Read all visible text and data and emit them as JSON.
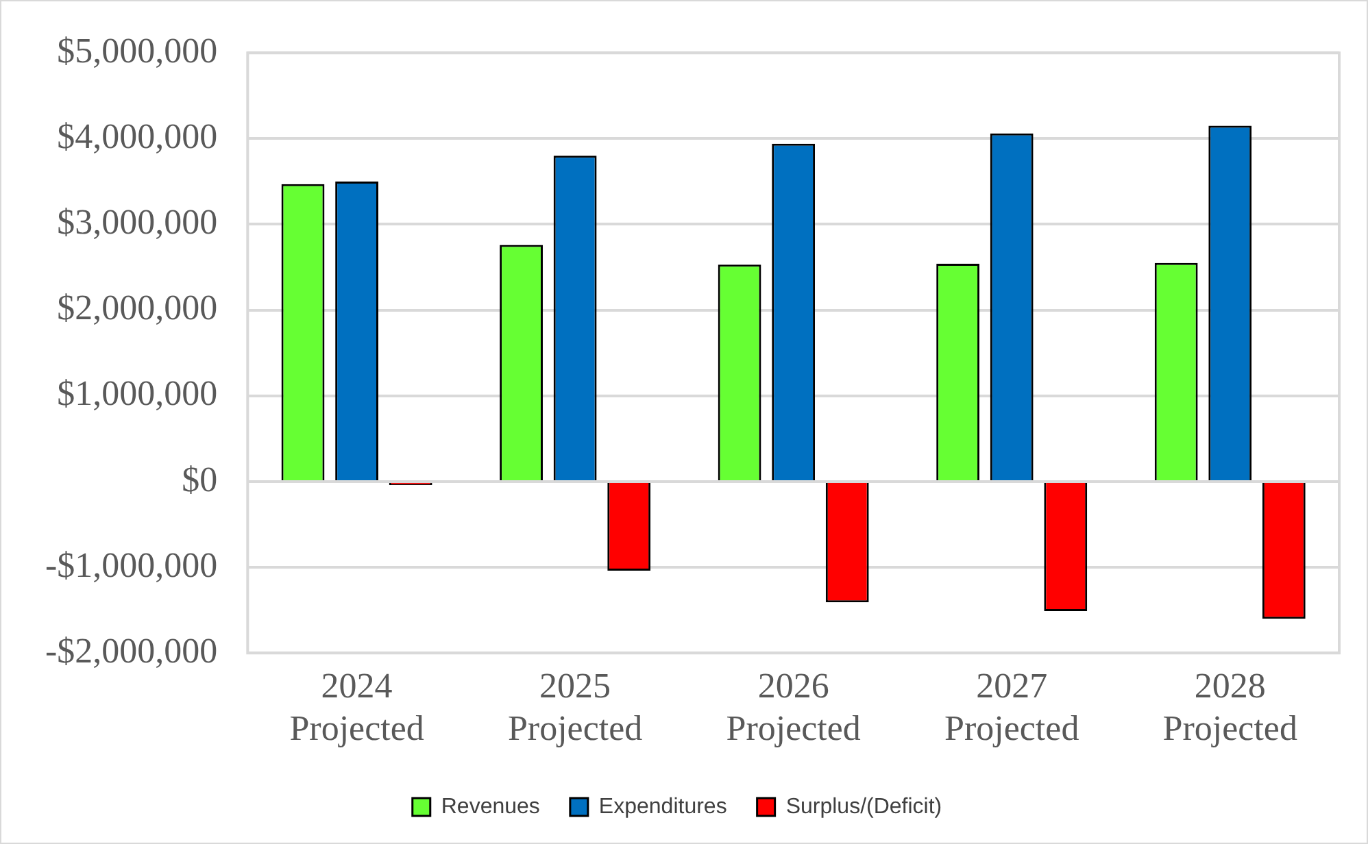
{
  "chart_data": {
    "type": "bar",
    "categories": [
      "2024 Projected",
      "2025 Projected",
      "2026 Projected",
      "2027 Projected",
      "2028 Projected"
    ],
    "series": [
      {
        "name": "Revenues",
        "color": "#66ff33",
        "values": [
          3470000,
          2760000,
          2530000,
          2540000,
          2550000
        ]
      },
      {
        "name": "Expenditures",
        "color": "#0070c0",
        "values": [
          3500000,
          3800000,
          3940000,
          4060000,
          4150000
        ]
      },
      {
        "name": "Surplus/(Deficit)",
        "color": "#ff0000",
        "values": [
          -40000,
          -1040000,
          -1410000,
          -1510000,
          -1600000
        ]
      }
    ],
    "ylim": [
      -2000000,
      5000000
    ],
    "yticks": [
      {
        "value": -2000000,
        "label": "-$2,000,000"
      },
      {
        "value": -1000000,
        "label": "-$1,000,000"
      },
      {
        "value": 0,
        "label": "$0"
      },
      {
        "value": 1000000,
        "label": "$1,000,000"
      },
      {
        "value": 2000000,
        "label": "$2,000,000"
      },
      {
        "value": 3000000,
        "label": "$3,000,000"
      },
      {
        "value": 4000000,
        "label": "$4,000,000"
      },
      {
        "value": 5000000,
        "label": "$5,000,000"
      }
    ],
    "grid": "y",
    "legend": "bottom"
  }
}
